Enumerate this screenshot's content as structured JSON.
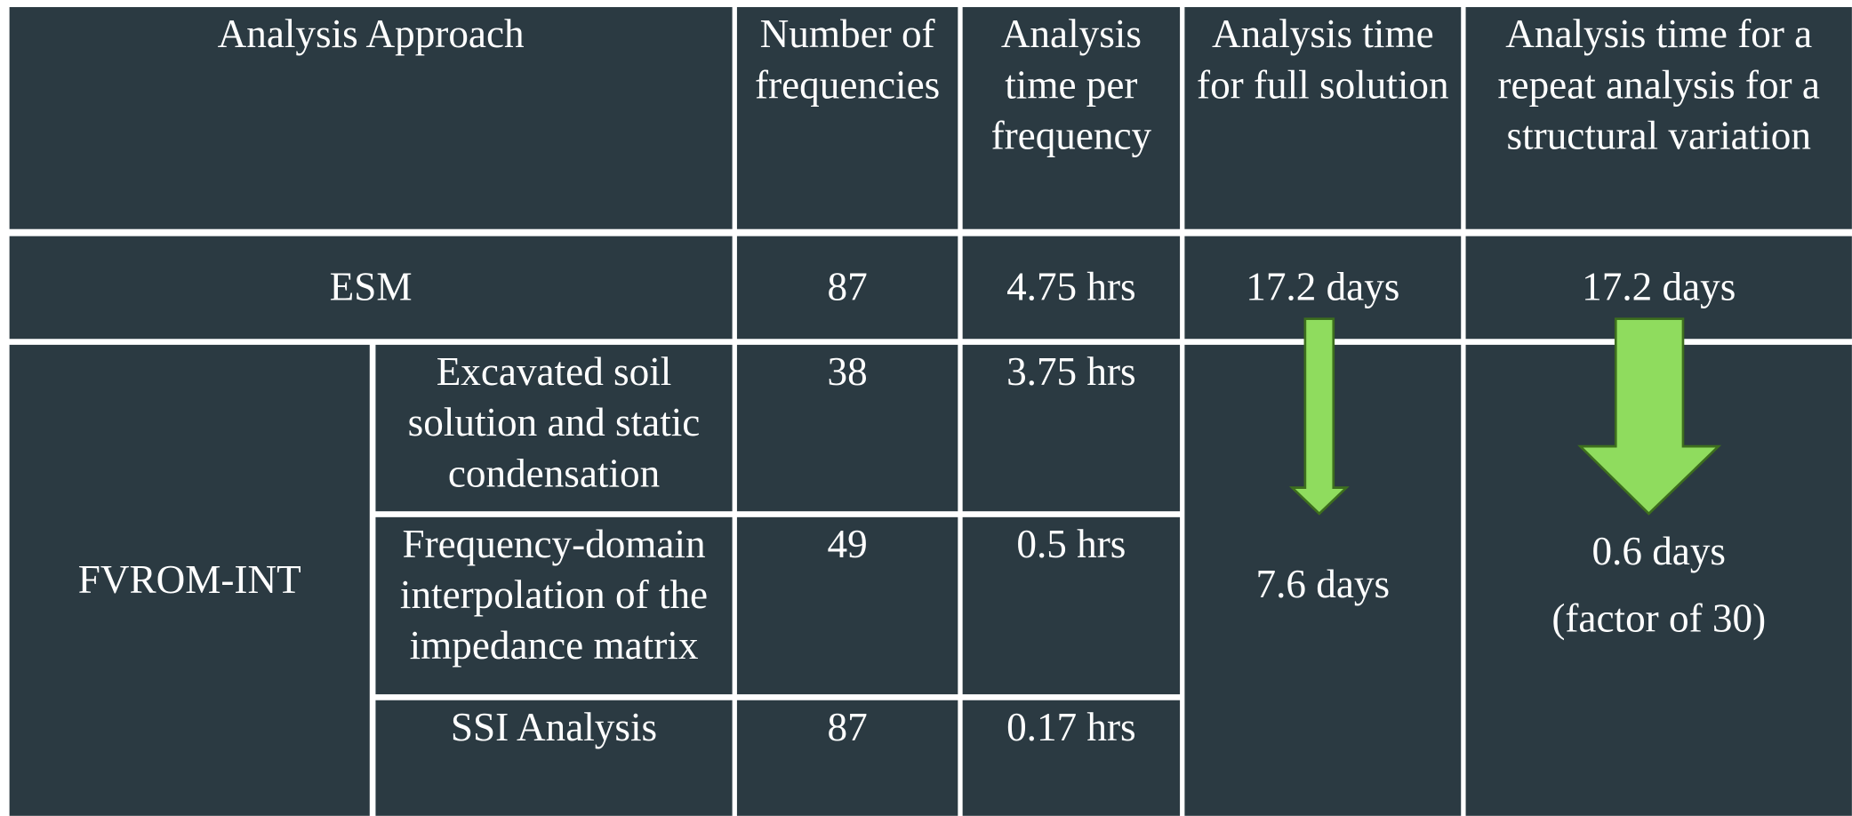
{
  "header": [
    "Analysis Approach",
    "Number of frequencies",
    "Analysis time per frequency",
    "Analysis time for full solution",
    "Analysis time for a repeat analysis for a structural variation"
  ],
  "rows": [
    {
      "approach": "ESM",
      "frequencies": 87,
      "time_per_frequency": "4.75 hrs",
      "full_solution": "17.2 days",
      "repeat_analysis": "17.2 days"
    },
    {
      "approach": "FVROM-INT",
      "steps": [
        {
          "name": "Excavated soil solution and static condensation",
          "frequencies": 38,
          "time_per_frequency": "3.75 hrs"
        },
        {
          "name": "Frequency-domain interpolation of the impedance matrix",
          "frequencies": 49,
          "time_per_frequency": "0.5 hrs"
        },
        {
          "name": "SSI Analysis",
          "frequencies": 87,
          "time_per_frequency": "0.17 hrs"
        }
      ],
      "full_solution": "7.6 days",
      "repeat_analysis": "0.6 days",
      "repeat_note": "(factor of 30)"
    }
  ]
}
